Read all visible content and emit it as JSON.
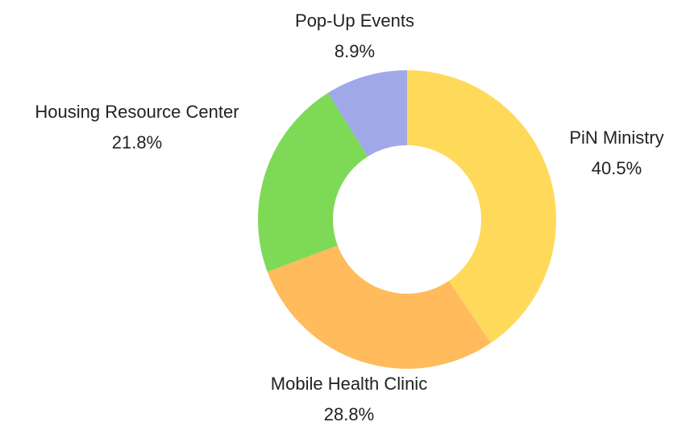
{
  "chart_data": {
    "type": "donut",
    "categories": [
      "PiN Ministry",
      "Mobile Health Clinic",
      "Housing Resource Center",
      "Pop-Up Events"
    ],
    "values": [
      40.5,
      28.8,
      21.8,
      8.9
    ],
    "value_labels": [
      "40.5%",
      "28.8%",
      "21.8%",
      "8.9%"
    ],
    "colors": [
      "#FFD95A",
      "#FFBB5C",
      "#7ED957",
      "#A0A8E8"
    ]
  }
}
